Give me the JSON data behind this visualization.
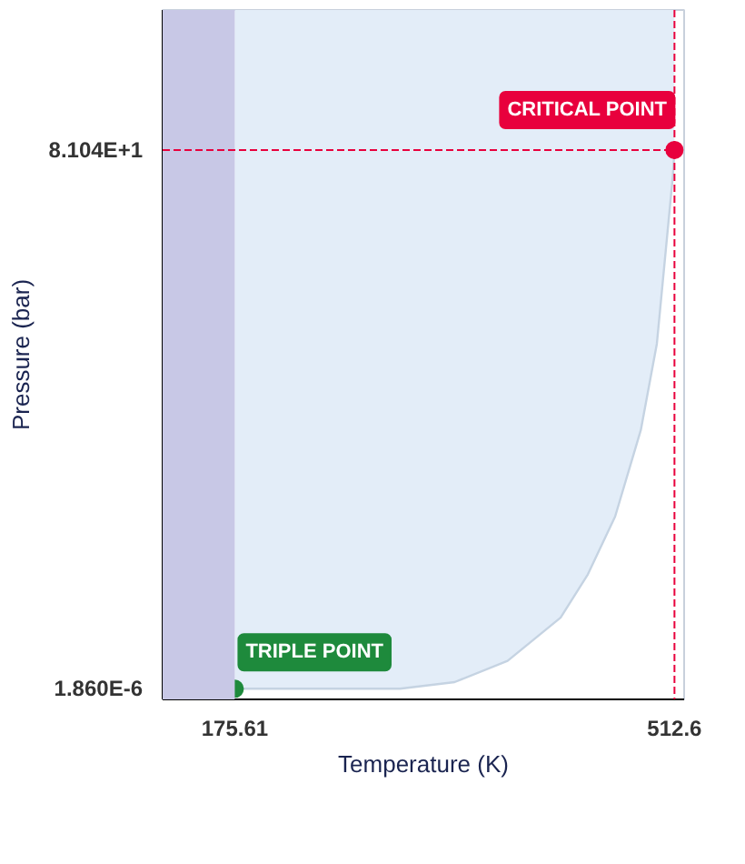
{
  "chart_data": {
    "type": "line",
    "xlabel": "Temperature (K)",
    "ylabel": "Pressure (bar)",
    "xlim": [
      120.3,
      520
    ],
    "ylim": [
      -1.6,
      102.1
    ],
    "xticks": [
      {
        "value": 175.61,
        "label": "175.61"
      },
      {
        "value": 512.6,
        "label": "512.6"
      }
    ],
    "yticks": [
      {
        "value": 1.86e-06,
        "label": "1.860E-6"
      },
      {
        "value": 81.04,
        "label": "8.104E+1"
      }
    ],
    "grid": false,
    "bands": [
      {
        "axis": "x",
        "from": 120.3,
        "to": 175.61,
        "color": "#c8c8e6"
      }
    ],
    "ref_lines": [
      {
        "axis": "y",
        "value": 81.04,
        "color": "#e8003d",
        "line_style": "dashed"
      },
      {
        "axis": "x",
        "value": 512.6,
        "color": "#e8003d",
        "line_style": "dashed"
      }
    ],
    "series": [
      {
        "color": "#c5d3e2",
        "x": [
          175.61,
          250,
          302.3,
          344.1,
          384.7,
          425.3,
          446.2,
          467.1,
          486.8,
          499.1,
          511.4,
          512.6
        ],
        "values": [
          0,
          0,
          0,
          1.0,
          4.2,
          10.7,
          17.2,
          25.9,
          38.9,
          51.9,
          77.2,
          81.04
        ],
        "lower": [
          0,
          0,
          0,
          1.0,
          4.2,
          10.7,
          17.2,
          25.9,
          38.9,
          51.9,
          77.2,
          81.04
        ],
        "upper": [
          102.1,
          102.1,
          102.1,
          102.1,
          102.1,
          102.1,
          102.1,
          102.1,
          102.1,
          102.1,
          102.1,
          102.1
        ]
      },
      {
        "type": "scatter",
        "color": "#1e8a3c",
        "marker": "circle",
        "x": [
          175.61
        ],
        "values": [
          0
        ]
      },
      {
        "type": "scatter",
        "color": "#e8003d",
        "marker": "circle",
        "x": [
          512.6
        ],
        "values": [
          81.04
        ]
      }
    ],
    "annotations": [
      {
        "text": "TRIPLE POINT",
        "x": 175.61,
        "y": 1.86e-06
      },
      {
        "text": "CRITICAL POINT",
        "x": 512.6,
        "y": 81.04
      }
    ]
  }
}
